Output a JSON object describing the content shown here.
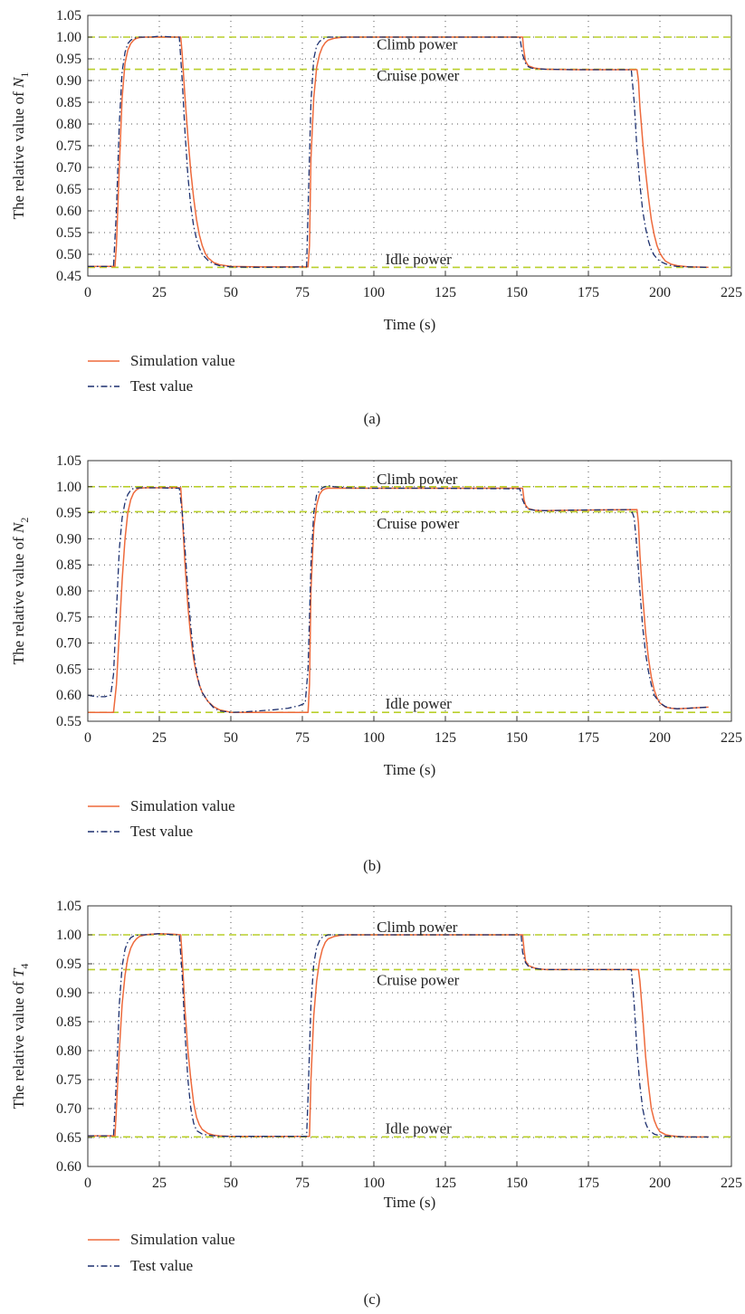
{
  "chart_data": [
    {
      "type": "line",
      "panel_label": "(a)",
      "xlabel": "Time (s)",
      "ylabel_prefix": "The relative value of ",
      "ylabel_symbol": "N",
      "ylabel_subscript": "1",
      "xlim": [
        0,
        225
      ],
      "ylim": [
        0.45,
        1.05
      ],
      "xticks": [
        0,
        25,
        50,
        75,
        100,
        125,
        150,
        175,
        200,
        225
      ],
      "yticks": [
        0.45,
        0.5,
        0.55,
        0.6,
        0.65,
        0.7,
        0.75,
        0.8,
        0.85,
        0.9,
        0.95,
        1.0,
        1.05
      ],
      "grid": "dotted",
      "reference_lines": [
        {
          "y": 1.0,
          "label": "Climb power",
          "label_x": 101,
          "label_y": 0.972
        },
        {
          "y": 0.926,
          "label": "Cruise power",
          "label_x": 101,
          "label_y": 0.9
        },
        {
          "y": 0.47,
          "label": "Idle power",
          "label_x": 104,
          "label_y": 0.477
        }
      ],
      "legend": {
        "position": "below",
        "entries": [
          "Simulation value",
          "Test value"
        ]
      },
      "series": [
        {
          "name": "Simulation value",
          "color": "#ee6a3c",
          "style": "solid",
          "x": [
            0,
            9.5,
            10,
            11,
            12,
            13,
            14,
            15,
            16,
            17,
            18,
            20,
            22,
            25,
            30,
            32.5,
            33,
            34,
            35,
            36,
            37,
            38,
            39,
            40,
            41,
            42,
            44,
            46,
            50,
            60,
            77,
            77.5,
            78,
            79,
            80,
            81,
            82,
            83,
            84,
            86,
            88,
            90,
            95,
            100,
            120,
            152,
            152.3,
            153,
            154,
            156,
            158,
            160,
            170,
            192,
            192.5,
            193,
            194,
            195,
            196,
            197,
            198,
            199,
            200,
            201,
            202,
            204,
            206,
            210,
            217
          ],
          "y": [
            0.472,
            0.472,
            0.52,
            0.7,
            0.86,
            0.94,
            0.97,
            0.985,
            0.993,
            0.997,
            0.999,
            1.0,
            1.0,
            1.0,
            1.0,
            1.0,
            0.96,
            0.86,
            0.77,
            0.69,
            0.63,
            0.58,
            0.545,
            0.52,
            0.503,
            0.492,
            0.481,
            0.476,
            0.472,
            0.471,
            0.471,
            0.52,
            0.72,
            0.86,
            0.93,
            0.96,
            0.977,
            0.987,
            0.993,
            0.997,
            0.999,
            1.0,
            1.0,
            1.0,
            1.0,
            1.0,
            0.975,
            0.945,
            0.934,
            0.929,
            0.927,
            0.926,
            0.925,
            0.925,
            0.9,
            0.84,
            0.76,
            0.69,
            0.63,
            0.58,
            0.545,
            0.52,
            0.503,
            0.492,
            0.484,
            0.477,
            0.474,
            0.471,
            0.47
          ]
        },
        {
          "name": "Test value",
          "color": "#1c2f6e",
          "style": "dashdot",
          "x": [
            0,
            9,
            10,
            11,
            12,
            13,
            14,
            15,
            16,
            18,
            20,
            22,
            25,
            30,
            32,
            33,
            34,
            35,
            36,
            37,
            38,
            39,
            40,
            42,
            44,
            46,
            50,
            60,
            76.5,
            77,
            78,
            79,
            80,
            81,
            82,
            83,
            84,
            86,
            88,
            90,
            100,
            120,
            151,
            152,
            153,
            154,
            155,
            157,
            160,
            170,
            190,
            191,
            192,
            193,
            194,
            195,
            196,
            197,
            198,
            199,
            200,
            202,
            204,
            206,
            210,
            217
          ],
          "y": [
            0.472,
            0.472,
            0.6,
            0.8,
            0.92,
            0.965,
            0.985,
            0.993,
            0.997,
            1.0,
            1.0,
            1.0,
            1.002,
            1.0,
            1.0,
            0.9,
            0.78,
            0.68,
            0.61,
            0.565,
            0.535,
            0.515,
            0.5,
            0.486,
            0.478,
            0.474,
            0.471,
            0.47,
            0.471,
            0.6,
            0.85,
            0.95,
            0.98,
            0.99,
            0.995,
            0.998,
            1.0,
            1.0,
            1.0,
            1.0,
            1.0,
            1.0,
            1.0,
            0.96,
            0.94,
            0.932,
            0.929,
            0.927,
            0.926,
            0.925,
            0.925,
            0.85,
            0.74,
            0.66,
            0.6,
            0.56,
            0.53,
            0.51,
            0.498,
            0.49,
            0.484,
            0.478,
            0.474,
            0.472,
            0.471,
            0.47
          ]
        }
      ]
    },
    {
      "type": "line",
      "panel_label": "(b)",
      "xlabel": "Time (s)",
      "ylabel_prefix": "The relative value of ",
      "ylabel_symbol": "N",
      "ylabel_subscript": "2",
      "xlim": [
        0,
        225
      ],
      "ylim": [
        0.55,
        1.05
      ],
      "xticks": [
        0,
        25,
        50,
        75,
        100,
        125,
        150,
        175,
        200,
        225
      ],
      "yticks": [
        0.55,
        0.6,
        0.65,
        0.7,
        0.75,
        0.8,
        0.85,
        0.9,
        0.95,
        1.0,
        1.05
      ],
      "grid": "dotted",
      "reference_lines": [
        {
          "y": 1.0,
          "label": "Climb power",
          "label_x": 101,
          "label_y": 1.005
        },
        {
          "y": 0.952,
          "label": "Cruise power",
          "label_x": 101,
          "label_y": 0.92
        },
        {
          "y": 0.567,
          "label": "Idle power",
          "label_x": 104,
          "label_y": 0.574
        }
      ],
      "legend": {
        "position": "below",
        "entries": [
          "Simulation value",
          "Test value"
        ]
      },
      "series": [
        {
          "name": "Simulation value",
          "color": "#ee6a3c",
          "style": "solid",
          "x": [
            0,
            9,
            10,
            11,
            12,
            13,
            14,
            15,
            16,
            17,
            18,
            20,
            22,
            25,
            30,
            32.5,
            33,
            34,
            35,
            36,
            37,
            38,
            39,
            40,
            42,
            44,
            46,
            50,
            60,
            77,
            77.5,
            78,
            79,
            80,
            81,
            82,
            83,
            84,
            86,
            88,
            90,
            100,
            120,
            152,
            152.5,
            153,
            154,
            156,
            158,
            160,
            170,
            192,
            192.5,
            193,
            194,
            195,
            196,
            197,
            198,
            199,
            200,
            202,
            204,
            206,
            210,
            217
          ],
          "y": [
            0.567,
            0.567,
            0.62,
            0.72,
            0.82,
            0.9,
            0.95,
            0.975,
            0.988,
            0.994,
            0.997,
            0.998,
            0.998,
            0.998,
            0.998,
            0.998,
            0.95,
            0.85,
            0.77,
            0.71,
            0.67,
            0.64,
            0.62,
            0.605,
            0.588,
            0.578,
            0.572,
            0.567,
            0.567,
            0.567,
            0.62,
            0.8,
            0.92,
            0.965,
            0.985,
            0.993,
            0.996,
            0.997,
            0.997,
            0.997,
            0.997,
            0.997,
            0.997,
            0.997,
            0.975,
            0.965,
            0.958,
            0.955,
            0.954,
            0.954,
            0.955,
            0.956,
            0.93,
            0.87,
            0.79,
            0.72,
            0.67,
            0.635,
            0.61,
            0.595,
            0.585,
            0.577,
            0.575,
            0.574,
            0.575,
            0.577
          ]
        },
        {
          "name": "Test value",
          "color": "#1c2f6e",
          "style": "dashdot",
          "x": [
            0,
            3,
            6,
            8,
            9,
            10,
            11,
            12,
            13,
            14,
            15,
            16,
            18,
            20,
            25,
            30,
            32,
            33,
            34,
            35,
            36,
            37,
            38,
            39,
            40,
            42,
            44,
            46,
            50,
            55,
            60,
            65,
            70,
            74,
            76,
            77,
            78,
            79,
            80,
            82,
            84,
            86,
            90,
            100,
            120,
            150,
            151,
            152,
            153,
            154,
            156,
            160,
            170,
            190,
            191,
            192,
            193,
            194,
            195,
            196,
            197,
            198,
            200,
            202,
            204,
            206,
            210,
            217
          ],
          "y": [
            0.6,
            0.597,
            0.597,
            0.6,
            0.64,
            0.76,
            0.88,
            0.94,
            0.97,
            0.985,
            0.993,
            0.997,
            0.998,
            0.998,
            0.998,
            0.997,
            0.997,
            0.95,
            0.88,
            0.8,
            0.73,
            0.68,
            0.645,
            0.62,
            0.605,
            0.588,
            0.576,
            0.57,
            0.567,
            0.568,
            0.57,
            0.572,
            0.575,
            0.58,
            0.585,
            0.65,
            0.85,
            0.95,
            0.985,
            0.998,
            1.002,
            1.0,
            0.998,
            0.997,
            0.997,
            0.996,
            0.996,
            0.975,
            0.962,
            0.957,
            0.955,
            0.954,
            0.955,
            0.956,
            0.94,
            0.88,
            0.8,
            0.73,
            0.68,
            0.645,
            0.62,
            0.6,
            0.585,
            0.578,
            0.575,
            0.574,
            0.575,
            0.577
          ]
        }
      ]
    },
    {
      "type": "line",
      "panel_label": "(c)",
      "xlabel": "Time (s)",
      "ylabel_prefix": "The relative value of ",
      "ylabel_symbol": "T",
      "ylabel_subscript": "4",
      "xlim": [
        0,
        225
      ],
      "ylim": [
        0.6,
        1.05
      ],
      "xticks": [
        0,
        25,
        50,
        75,
        100,
        125,
        150,
        175,
        200,
        225
      ],
      "yticks": [
        0.6,
        0.65,
        0.7,
        0.75,
        0.8,
        0.85,
        0.9,
        0.95,
        1.0,
        1.05
      ],
      "grid": "dotted",
      "reference_lines": [
        {
          "y": 1.0,
          "label": "Climb power",
          "label_x": 101,
          "label_y": 1.005
        },
        {
          "y": 0.94,
          "label": "Cruise power",
          "label_x": 101,
          "label_y": 0.913
        },
        {
          "y": 0.651,
          "label": "Idle power",
          "label_x": 104,
          "label_y": 0.657
        }
      ],
      "legend": {
        "position": "below",
        "entries": [
          "Simulation value",
          "Test value"
        ]
      },
      "series": [
        {
          "name": "Simulation value",
          "color": "#ee6a3c",
          "style": "solid",
          "x": [
            0,
            9.5,
            10,
            11,
            12,
            13,
            14,
            15,
            16,
            17,
            18,
            20,
            22,
            25,
            30,
            32.5,
            33,
            34,
            35,
            36,
            37,
            38,
            39,
            40,
            42,
            44,
            46,
            50,
            60,
            77.5,
            78,
            79,
            80,
            81,
            82,
            83,
            84,
            86,
            88,
            90,
            100,
            120,
            152,
            152.5,
            153,
            154,
            156,
            158,
            160,
            170,
            192.5,
            193,
            194,
            195,
            196,
            197,
            198,
            199,
            200,
            202,
            204,
            206,
            210,
            217
          ],
          "y": [
            0.653,
            0.653,
            0.7,
            0.8,
            0.88,
            0.93,
            0.96,
            0.977,
            0.987,
            0.993,
            0.997,
            1.0,
            1.001,
            1.002,
            1.001,
            1.0,
            0.96,
            0.87,
            0.8,
            0.75,
            0.71,
            0.685,
            0.672,
            0.664,
            0.657,
            0.654,
            0.653,
            0.652,
            0.652,
            0.652,
            0.75,
            0.86,
            0.92,
            0.955,
            0.975,
            0.987,
            0.993,
            0.997,
            0.999,
            1.0,
            1.0,
            1.0,
            1.0,
            0.975,
            0.955,
            0.947,
            0.943,
            0.941,
            0.94,
            0.94,
            0.94,
            0.92,
            0.86,
            0.79,
            0.74,
            0.7,
            0.68,
            0.668,
            0.66,
            0.655,
            0.653,
            0.652,
            0.651,
            0.651
          ]
        },
        {
          "name": "Test value",
          "color": "#1c2f6e",
          "style": "dashdot",
          "x": [
            0,
            9,
            10,
            11,
            12,
            13,
            14,
            15,
            16,
            18,
            20,
            25,
            30,
            32,
            33,
            34,
            35,
            36,
            37,
            38,
            40,
            42,
            44,
            46,
            50,
            60,
            76.5,
            77,
            78,
            79,
            80,
            81,
            82,
            84,
            86,
            90,
            100,
            120,
            151.5,
            152,
            153,
            154,
            156,
            160,
            170,
            190,
            191,
            192,
            193,
            194,
            195,
            196,
            198,
            200,
            204,
            210,
            217
          ],
          "y": [
            0.653,
            0.653,
            0.75,
            0.88,
            0.945,
            0.975,
            0.988,
            0.995,
            0.998,
            1.0,
            1.0,
            1.002,
            1.0,
            1.0,
            0.93,
            0.83,
            0.75,
            0.7,
            0.675,
            0.662,
            0.656,
            0.654,
            0.653,
            0.652,
            0.652,
            0.652,
            0.652,
            0.72,
            0.88,
            0.95,
            0.978,
            0.99,
            0.996,
            1.0,
            1.0,
            1.0,
            1.0,
            1.0,
            1.0,
            0.97,
            0.952,
            0.946,
            0.942,
            0.94,
            0.94,
            0.94,
            0.88,
            0.8,
            0.74,
            0.7,
            0.675,
            0.663,
            0.656,
            0.653,
            0.652,
            0.651,
            0.651
          ]
        }
      ]
    }
  ]
}
